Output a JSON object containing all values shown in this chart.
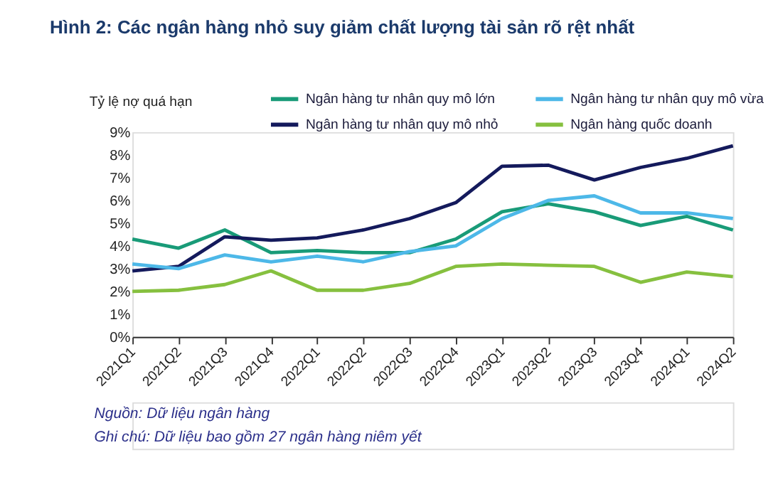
{
  "chart_data": {
    "type": "line",
    "title": "Hình 2: Các ngân hàng nhỏ suy giảm chất lượng tài sản rõ rệt nhất",
    "ylabel": "Tỷ lệ nợ quá hạn",
    "categories": [
      "2021Q1",
      "2021Q2",
      "2021Q3",
      "2021Q4",
      "2022Q1",
      "2022Q2",
      "2022Q3",
      "2022Q4",
      "2023Q1",
      "2023Q2",
      "2023Q3",
      "2023Q4",
      "2024Q1",
      "2024Q2"
    ],
    "series": [
      {
        "name": "Ngân hàng tư nhân quy mô lớn",
        "color": "#199b78",
        "values": [
          4.3,
          3.9,
          4.7,
          3.7,
          3.8,
          3.7,
          3.7,
          4.3,
          5.5,
          5.85,
          5.5,
          4.9,
          5.3,
          4.7
        ]
      },
      {
        "name": "Ngân hàng tư nhân quy mô nhỏ",
        "color": "#141a5c",
        "values": [
          2.9,
          3.1,
          4.4,
          4.25,
          4.35,
          4.7,
          5.2,
          5.9,
          7.5,
          7.55,
          6.9,
          7.45,
          7.85,
          8.4
        ]
      },
      {
        "name": "Ngân hàng tư nhân quy mô vừa",
        "color": "#4db8e8",
        "values": [
          3.2,
          3.0,
          3.6,
          3.3,
          3.55,
          3.3,
          3.75,
          4.0,
          5.2,
          6.0,
          6.2,
          5.45,
          5.45,
          5.2
        ]
      },
      {
        "name": "Ngân hàng quốc doanh",
        "color": "#86c03f",
        "values": [
          2.0,
          2.05,
          2.3,
          2.9,
          2.05,
          2.05,
          2.35,
          3.1,
          3.2,
          3.15,
          3.1,
          2.4,
          2.85,
          2.65
        ]
      }
    ],
    "ylim": [
      0,
      9
    ],
    "yticks": [
      {
        "value": 0,
        "label": "0%"
      },
      {
        "value": 1,
        "label": "1%"
      },
      {
        "value": 2,
        "label": "2%"
      },
      {
        "value": 3,
        "label": "3%"
      },
      {
        "value": 4,
        "label": "4%"
      },
      {
        "value": 5,
        "label": "5%"
      },
      {
        "value": 6,
        "label": "6%"
      },
      {
        "value": 7,
        "label": "7%"
      },
      {
        "value": 8,
        "label": "8%"
      },
      {
        "value": 9,
        "label": "9%"
      }
    ],
    "grid": false,
    "legend": "top",
    "marker": "none",
    "line_style": "solid",
    "annotations": [
      "Nguồn: Dữ liệu ngân hàng",
      "Ghi chú: Dữ liệu bao gồm 27 ngân hàng niêm yết"
    ]
  }
}
